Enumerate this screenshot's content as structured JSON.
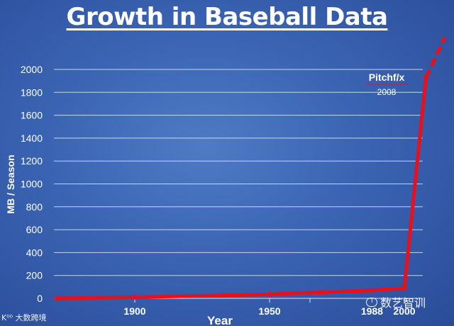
{
  "chart_data": {
    "type": "line",
    "title": "Growth in Baseball Data",
    "xlabel": "Year",
    "ylabel": "MB / Season",
    "x_ticks": [
      "1900",
      "1950",
      "1988",
      "2000"
    ],
    "y_ticks": [
      0,
      200,
      400,
      600,
      800,
      1000,
      1200,
      1400,
      1600,
      1800,
      2000
    ],
    "xlim": [
      1870,
      2000
    ],
    "ylim": [
      0,
      2000
    ],
    "grid": true,
    "series": [
      {
        "color": "#e8101a",
        "points": [
          {
            "x": 1871,
            "y": 0
          },
          {
            "x": 1900,
            "y": 10
          },
          {
            "x": 1950,
            "y": 35
          },
          {
            "x": 1988,
            "y": 70
          },
          {
            "x": 2000,
            "y": 90
          },
          {
            "x": 2008,
            "y": 1930
          }
        ],
        "projection": [
          {
            "x": 2008,
            "y": 1930
          },
          {
            "x": 2015,
            "y": 2280
          }
        ]
      }
    ],
    "annotations": [
      {
        "text": "Pitchf/x",
        "subtext": "2008"
      }
    ]
  },
  "watermarks": {
    "left": "K⁰⁰ 大数跨境",
    "right": "数艺智训"
  }
}
